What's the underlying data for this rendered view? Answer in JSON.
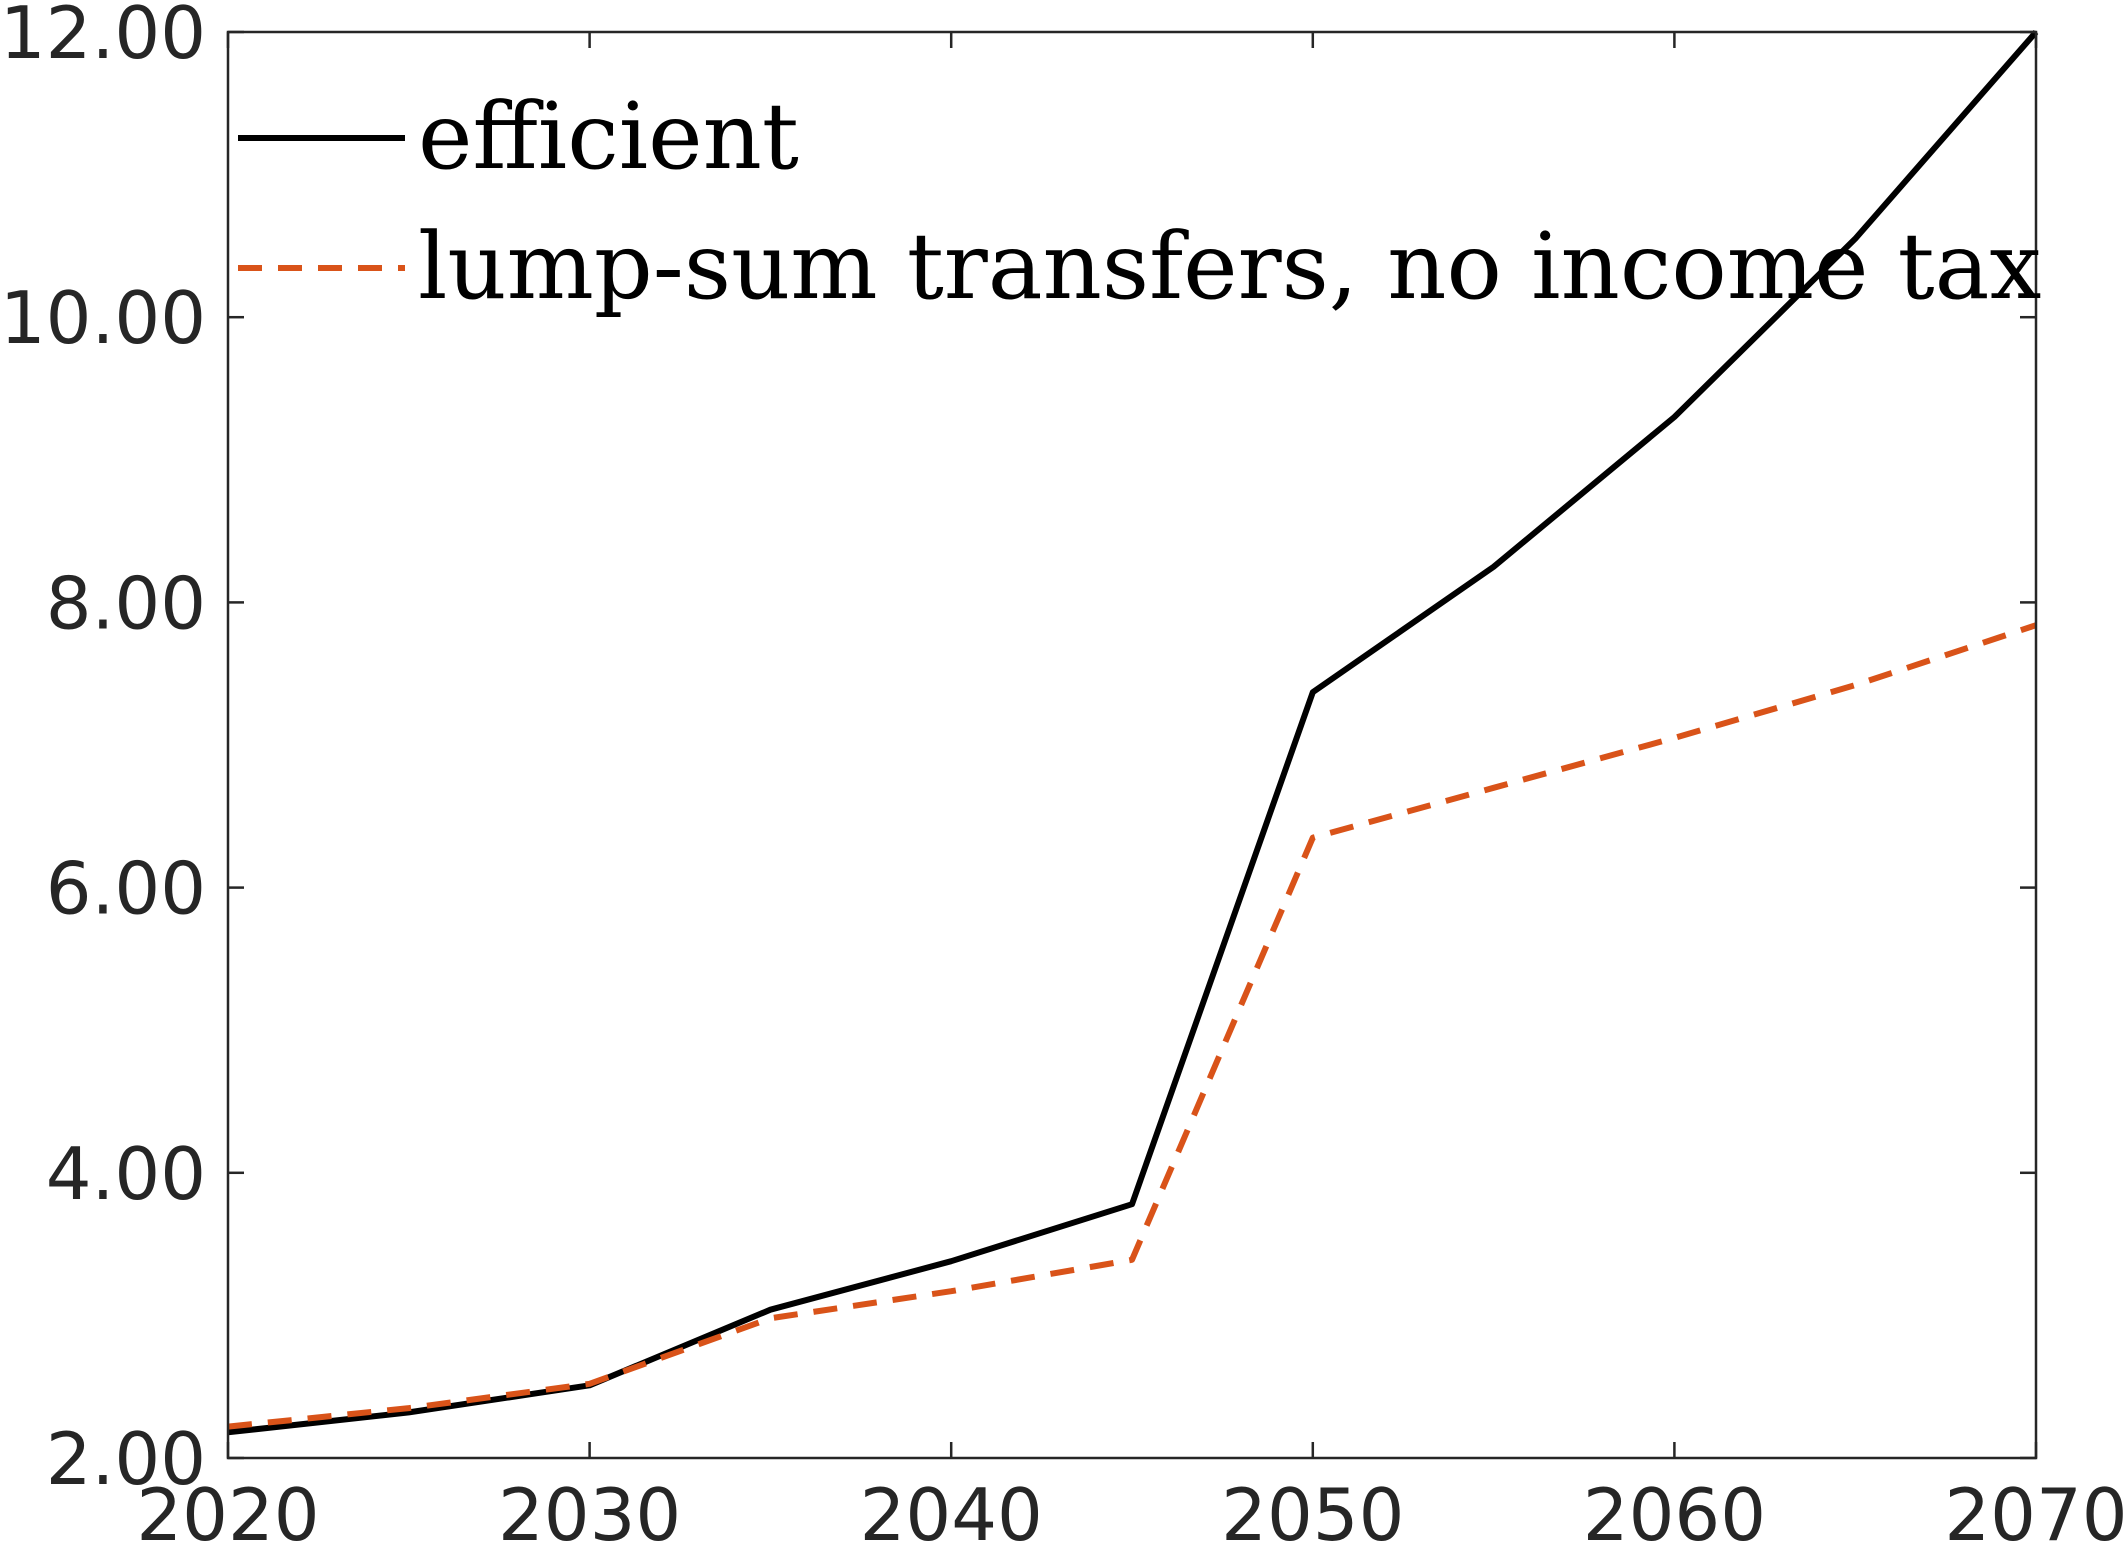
{
  "chart_data": {
    "type": "line",
    "title": "",
    "xlabel": "",
    "ylabel": "",
    "xlim": [
      2020,
      2070
    ],
    "ylim": [
      2.0,
      12.0
    ],
    "x_ticks": [
      "2020",
      "2030",
      "2040",
      "2050",
      "2060",
      "2070"
    ],
    "y_ticks": [
      "2.00",
      "4.00",
      "6.00",
      "8.00",
      "10.00",
      "12.00"
    ],
    "grid": false,
    "legend_position": "top-left",
    "x": [
      2020,
      2025,
      2030,
      2035,
      2040,
      2045,
      2050,
      2055,
      2060,
      2065,
      2070
    ],
    "series": [
      {
        "name": "efficient",
        "color": "#000000",
        "style": "solid",
        "values": [
          2.18,
          2.32,
          2.51,
          3.04,
          3.38,
          3.78,
          7.37,
          8.25,
          9.3,
          10.55,
          12.0
        ]
      },
      {
        "name": "lump-sum transfers, no income tax",
        "color": "#d95319",
        "style": "dashed",
        "values": [
          2.22,
          2.35,
          2.52,
          2.98,
          3.17,
          3.39,
          6.35,
          6.7,
          7.05,
          7.42,
          7.84
        ]
      }
    ]
  }
}
